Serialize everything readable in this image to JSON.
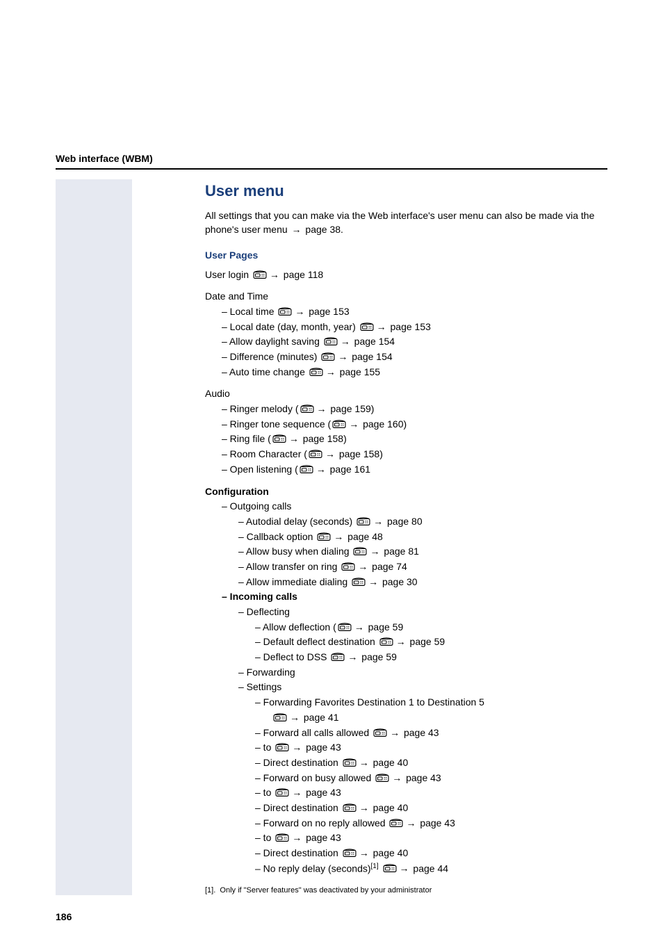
{
  "header": {
    "running": "Web interface (WBM)"
  },
  "section": {
    "title": "User menu",
    "intro_a": "All settings that you can make via the Web interface's user menu can also be made via the phone's user menu ",
    "intro_b": " page 38."
  },
  "sub": {
    "title": "User Pages"
  },
  "userlogin": {
    "label": "User login ",
    "page": " page 118"
  },
  "datetime": {
    "label": "Date and Time",
    "items": [
      {
        "text": "– Local time ",
        "page": " page 153"
      },
      {
        "text": "– Local date (day, month, year) ",
        "page": " page 153"
      },
      {
        "text": "– Allow daylight saving ",
        "page": " page 154"
      },
      {
        "text": "– Difference (minutes) ",
        "page": " page 154"
      },
      {
        "text": "– Auto time change ",
        "page": " page 155"
      }
    ]
  },
  "audio": {
    "label": "Audio",
    "items": [
      {
        "text": "– Ringer melody (",
        "page": " page 159)"
      },
      {
        "text": "– Ringer tone sequence (",
        "page": " page 160)"
      },
      {
        "text": "– Ring file (",
        "page": " page 158)"
      },
      {
        "text": "– Room Character (",
        "page": " page 158)"
      },
      {
        "text": "– Open listening (",
        "page": " page 161"
      }
    ]
  },
  "config": {
    "label": "Configuration",
    "outgoing_label": "– Outgoing calls",
    "outgoing": [
      {
        "text": "– Autodial delay (seconds)  ",
        "page": " page 80"
      },
      {
        "text": "– Callback option ",
        "page": " page 48"
      },
      {
        "text": "– Allow busy when dialing ",
        "page": " page 81"
      },
      {
        "text": "– Allow transfer on ring ",
        "page": " page 74"
      },
      {
        "text": "– Allow immediate dialing ",
        "page": " page 30"
      }
    ],
    "incoming_label": "– Incoming calls",
    "deflecting_label": "– Deflecting",
    "deflecting": [
      {
        "text": "– Allow deflection (",
        "page": " page 59"
      },
      {
        "text": "– Default deflect destination ",
        "page": " page 59"
      },
      {
        "text": "– Deflect to DSS ",
        "page": " page 59"
      }
    ],
    "forwarding_label": "– Forwarding",
    "settings_label": "– Settings",
    "settings_first": {
      "text": "– Forwarding Favorites Destination 1 to Destination 5",
      "page": " page 41"
    },
    "settings": [
      {
        "text": "– Forward all calls allowed ",
        "page": " page 43"
      },
      {
        "text": "– to  ",
        "page": " page 43"
      },
      {
        "text": "– Direct destination ",
        "page": " page 40"
      },
      {
        "text": "– Forward on busy allowed ",
        "page": " page 43"
      },
      {
        "text": "– to ",
        "page": " page 43"
      },
      {
        "text": "– Direct destination ",
        "page": " page 40"
      },
      {
        "text": "– Forward on no reply allowed ",
        "page": " page 43"
      },
      {
        "text": "– to ",
        "page": " page 43"
      },
      {
        "text": "– Direct destination ",
        "page": " page 40"
      }
    ],
    "noreply": {
      "text": "– No reply delay (seconds)",
      "sup": "[1]",
      "page": " page 44"
    }
  },
  "footnote": {
    "marker": "[1].",
    "text": "Only if \"Server features\" was deactivated by your administrator"
  },
  "pagenum": "186",
  "colors": {
    "accent": "#1a3e7a",
    "sidebar": "#e6e9f1"
  }
}
